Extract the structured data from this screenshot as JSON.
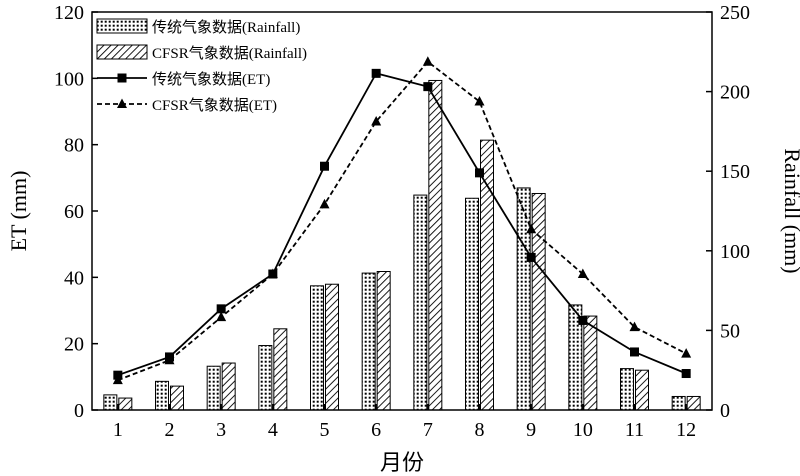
{
  "chart_data": {
    "type": "bar",
    "categories": [
      "1",
      "2",
      "3",
      "4",
      "5",
      "6",
      "7",
      "8",
      "9",
      "10",
      "11",
      "12"
    ],
    "xlabel": "月份",
    "ylabel_left": "ET (mm)",
    "ylabel_right": "Rainfall (mm)",
    "ylim_left": [
      0,
      120
    ],
    "ylim_right": [
      0,
      250
    ],
    "yticks_left": [
      0,
      20,
      40,
      60,
      80,
      100,
      120
    ],
    "yticks_right": [
      0,
      50,
      100,
      150,
      200,
      250
    ],
    "legend_position": "top-left",
    "grid": false,
    "series": [
      {
        "name": "传统气象数据(Rainfall)",
        "kind": "bar",
        "axis": "right",
        "pattern": "dots",
        "values": [
          9.5,
          18,
          27.5,
          40.5,
          78,
          86,
          135,
          133,
          139.5,
          66,
          26,
          8.5
        ]
      },
      {
        "name": "CFSR气象数据(Rainfall)",
        "kind": "bar",
        "axis": "right",
        "pattern": "hatch",
        "values": [
          7.5,
          15,
          29.5,
          51,
          79,
          87,
          207,
          169.5,
          136,
          59,
          25,
          8.5
        ]
      },
      {
        "name": "传统气象数据(ET)",
        "kind": "line",
        "axis": "left",
        "style": "solid",
        "marker": "square",
        "values": [
          10.5,
          16,
          30.5,
          41,
          73.5,
          101.5,
          97.5,
          71.5,
          46,
          27,
          17.5,
          11
        ]
      },
      {
        "name": "CFSR气象数据(ET)",
        "kind": "line",
        "axis": "left",
        "style": "dashed",
        "marker": "triangle",
        "values": [
          9,
          15,
          28,
          41,
          62,
          87,
          105,
          93,
          54.5,
          41,
          25,
          17
        ]
      }
    ]
  }
}
